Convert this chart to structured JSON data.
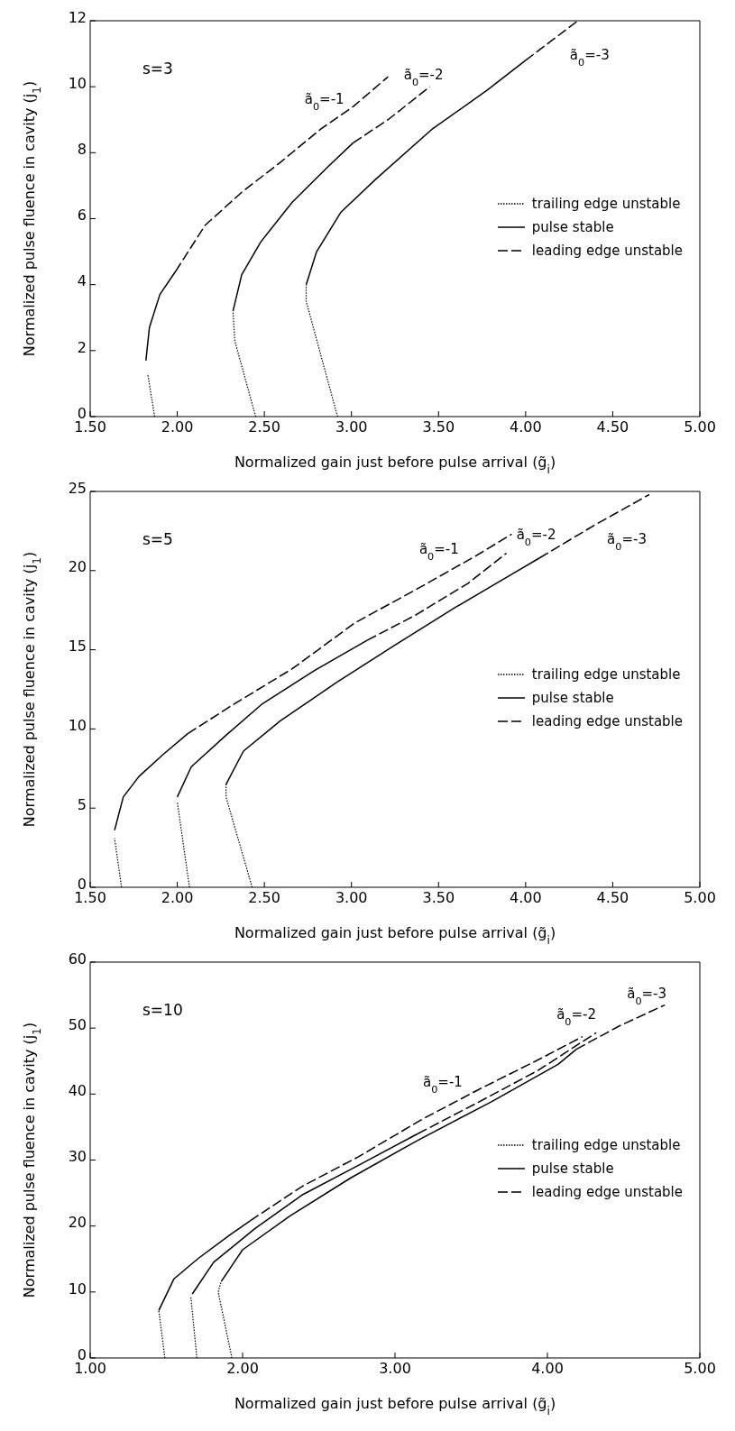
{
  "chart_data": [
    {
      "type": "line",
      "xlabel": "Normalized gain just before pulse arrival (g̃$_{i}$)",
      "ylabel": "Normalized pulse fluence in cavity (j$_{1}$)",
      "xlim": [
        1.5,
        5.0
      ],
      "xticks": [
        {
          "value": 1.5,
          "label": "1.50"
        },
        {
          "value": 2.0,
          "label": "2.00"
        },
        {
          "value": 2.5,
          "label": "2.50"
        },
        {
          "value": 3.0,
          "label": "3.00"
        },
        {
          "value": 3.5,
          "label": "3.50"
        },
        {
          "value": 4.0,
          "label": "4.00"
        },
        {
          "value": 4.5,
          "label": "4.50"
        },
        {
          "value": 5.0,
          "label": "5.00"
        }
      ],
      "ylim": [
        0,
        12
      ],
      "yticks": [
        0,
        2,
        4,
        6,
        8,
        10,
        12
      ],
      "grid": false,
      "legend": "right",
      "annotations": [
        "s=3",
        {
          "text": "ã$_{0}$=-1",
          "x": 3.01,
          "y": 9.4
        },
        {
          "text": "ã$_{0}$=-2",
          "x": 3.45,
          "y": 10.0
        },
        {
          "text": "ã$_{0}$=-3",
          "x": 4.3,
          "y": 12.0
        }
      ],
      "series": [
        {
          "name": "trailing edge unstable",
          "color": "#000000",
          "line_style": "dotted",
          "x": [
            1.87,
            1.83
          ],
          "values": [
            0,
            1.3
          ]
        },
        {
          "name": "pulse stable",
          "color": "#000000",
          "line_style": "solid",
          "x": [
            1.82,
            1.84,
            1.9,
            1.99
          ],
          "values": [
            1.7,
            2.7,
            3.7,
            4.4
          ]
        },
        {
          "name": "leading edge unstable",
          "color": "#000000",
          "line_style": "dashed",
          "x": [
            1.99,
            2.16,
            2.37,
            2.59,
            2.82,
            3.01,
            3.21
          ],
          "values": [
            4.4,
            5.8,
            6.8,
            7.7,
            8.7,
            9.4,
            10.3
          ]
        },
        {
          "color": "#000000",
          "line_style": "dotted",
          "x": [
            2.45,
            2.33,
            2.32
          ],
          "values": [
            0,
            2.3,
            3.2
          ]
        },
        {
          "color": "#000000",
          "line_style": "solid",
          "x": [
            2.32,
            2.37,
            2.48,
            2.66,
            2.87,
            3.01
          ],
          "values": [
            3.2,
            4.3,
            5.3,
            6.5,
            7.6,
            8.3
          ]
        },
        {
          "color": "#000000",
          "line_style": "dashed",
          "x": [
            3.01,
            3.21,
            3.45
          ],
          "values": [
            8.3,
            9.0,
            10.0
          ]
        },
        {
          "color": "#000000",
          "line_style": "dotted",
          "x": [
            2.92,
            2.74,
            2.74
          ],
          "values": [
            0,
            3.5,
            4.0
          ]
        },
        {
          "color": "#000000",
          "line_style": "solid",
          "x": [
            2.74,
            2.8,
            2.94,
            3.14,
            3.46,
            3.78,
            4.0
          ],
          "values": [
            4.0,
            5.0,
            6.2,
            7.2,
            8.7,
            9.9,
            10.8
          ]
        },
        {
          "color": "#000000",
          "line_style": "dashed",
          "x": [
            4.0,
            4.15,
            4.3
          ],
          "values": [
            10.8,
            11.4,
            12.0
          ]
        }
      ]
    },
    {
      "type": "line",
      "xlabel": "Normalized gain just before pulse arrival (g̃$_{i}$)",
      "ylabel": "Normalized pulse fluence in cavity (j$_{1}$)",
      "xlim": [
        1.5,
        5.0
      ],
      "xticks": [
        {
          "value": 1.5,
          "label": "1.50"
        },
        {
          "value": 2.0,
          "label": "2.00"
        },
        {
          "value": 2.5,
          "label": "2.50"
        },
        {
          "value": 3.0,
          "label": "3.00"
        },
        {
          "value": 3.5,
          "label": "3.50"
        },
        {
          "value": 4.0,
          "label": "4.00"
        },
        {
          "value": 4.5,
          "label": "4.50"
        },
        {
          "value": 5.0,
          "label": "5.00"
        }
      ],
      "ylim": [
        0,
        25
      ],
      "yticks": [
        0,
        5,
        10,
        15,
        20,
        25
      ],
      "grid": false,
      "legend": "right",
      "annotations": [
        "s=5",
        {
          "text": "ã$_{0}$=-1",
          "x": 3.71,
          "y": 20.9
        },
        {
          "text": "ã$_{0}$=-2",
          "x": 3.89,
          "y": 21.1
        },
        {
          "text": "ã$_{0}$=-3",
          "x": 4.71,
          "y": 24.8
        }
      ],
      "series": [
        {
          "name": "trailing edge unstable",
          "color": "#000000",
          "line_style": "dotted",
          "x": [
            1.68,
            1.64
          ],
          "values": [
            0,
            3.1
          ]
        },
        {
          "name": "pulse stable",
          "color": "#000000",
          "line_style": "solid",
          "x": [
            1.64,
            1.69,
            1.78,
            1.92,
            2.06
          ],
          "values": [
            3.6,
            5.7,
            7.0,
            8.4,
            9.7
          ]
        },
        {
          "name": "leading edge unstable",
          "color": "#000000",
          "line_style": "dashed",
          "x": [
            2.06,
            2.33,
            2.66,
            3.02,
            3.37,
            3.71,
            3.92
          ],
          "values": [
            9.7,
            11.6,
            13.8,
            16.7,
            18.8,
            20.9,
            22.3
          ]
        },
        {
          "color": "#000000",
          "line_style": "dotted",
          "x": [
            2.07,
            2.0
          ],
          "values": [
            0,
            5.4
          ]
        },
        {
          "color": "#000000",
          "line_style": "solid",
          "x": [
            2.0,
            2.08,
            2.29,
            2.49,
            2.79,
            3.09
          ],
          "values": [
            5.7,
            7.6,
            9.7,
            11.6,
            13.7,
            15.6
          ]
        },
        {
          "color": "#000000",
          "line_style": "dashed",
          "x": [
            3.09,
            3.37,
            3.67,
            3.89
          ],
          "values": [
            15.6,
            17.2,
            19.2,
            21.1
          ]
        },
        {
          "color": "#000000",
          "line_style": "dotted",
          "x": [
            2.43,
            2.28,
            2.28
          ],
          "values": [
            0,
            5.7,
            6.5
          ]
        },
        {
          "color": "#000000",
          "line_style": "solid",
          "x": [
            2.28,
            2.38,
            2.59,
            2.91,
            3.25,
            3.6,
            3.94,
            4.08
          ],
          "values": [
            6.5,
            8.6,
            10.5,
            12.9,
            15.3,
            17.7,
            19.9,
            20.8
          ]
        },
        {
          "color": "#000000",
          "line_style": "dashed",
          "x": [
            4.08,
            4.4,
            4.71
          ],
          "values": [
            20.8,
            22.9,
            24.8
          ]
        }
      ]
    },
    {
      "type": "line",
      "xlabel": "Normalized gain just before pulse arrival (g̃$_{i}$)",
      "ylabel": "Normalized pulse fluence in cavity (j$_{1}$)",
      "xlim": [
        1.0,
        5.0
      ],
      "xticks": [
        {
          "value": 1.0,
          "label": "1.00"
        },
        {
          "value": 2.0,
          "label": "2.00"
        },
        {
          "value": 3.0,
          "label": "3.00"
        },
        {
          "value": 4.0,
          "label": "4.00"
        },
        {
          "value": 5.0,
          "label": "5.00"
        }
      ],
      "ylim": [
        0,
        60
      ],
      "yticks": [
        0,
        10,
        20,
        30,
        40,
        50,
        60
      ],
      "grid": false,
      "legend": "right",
      "annotations": [
        "s=10",
        {
          "text": "ã$_{0}$=-1",
          "x": 3.55,
          "y": 40.7
        },
        {
          "text": "ã$_{0}$=-2",
          "x": 4.32,
          "y": 49.3
        },
        {
          "text": "ã$_{0}$=-3",
          "x": 4.77,
          "y": 53.5
        }
      ],
      "series": [
        {
          "name": "trailing edge unstable",
          "color": "#000000",
          "line_style": "dotted",
          "x": [
            1.49,
            1.45
          ],
          "values": [
            0,
            7.2
          ]
        },
        {
          "name": "pulse stable",
          "color": "#000000",
          "line_style": "solid",
          "x": [
            1.45,
            1.55,
            1.71,
            1.92,
            2.05
          ],
          "values": [
            7.2,
            12.0,
            15.1,
            18.7,
            20.8
          ]
        },
        {
          "name": "leading edge unstable",
          "color": "#000000",
          "line_style": "dashed",
          "x": [
            2.05,
            2.39,
            2.76,
            3.18,
            3.55,
            3.94,
            4.23
          ],
          "values": [
            20.8,
            26.0,
            30.5,
            36.2,
            40.7,
            45.2,
            48.7
          ]
        },
        {
          "color": "#000000",
          "line_style": "dotted",
          "x": [
            1.7,
            1.66
          ],
          "values": [
            0,
            9.4
          ]
        },
        {
          "color": "#000000",
          "line_style": "solid",
          "x": [
            1.67,
            1.81,
            2.08,
            2.39,
            2.76,
            3.15
          ],
          "values": [
            9.7,
            14.5,
            19.6,
            24.7,
            29.2,
            34.0
          ]
        },
        {
          "color": "#000000",
          "line_style": "dashed",
          "x": [
            3.15,
            3.55,
            3.94,
            4.32
          ],
          "values": [
            34.0,
            38.8,
            43.6,
            49.3
          ]
        },
        {
          "color": "#000000",
          "line_style": "dotted",
          "x": [
            1.93,
            1.84,
            1.86
          ],
          "values": [
            0,
            10.0,
            11.6
          ]
        },
        {
          "color": "#000000",
          "line_style": "solid",
          "x": [
            1.86,
            2.0,
            2.31,
            2.71,
            3.15,
            3.63,
            4.07,
            4.19
          ],
          "values": [
            11.6,
            16.4,
            21.5,
            27.3,
            33.0,
            38.8,
            44.5,
            46.8
          ]
        },
        {
          "color": "#000000",
          "line_style": "dashed",
          "x": [
            4.19,
            4.47,
            4.77
          ],
          "values": [
            46.8,
            50.3,
            53.5
          ]
        }
      ]
    }
  ]
}
